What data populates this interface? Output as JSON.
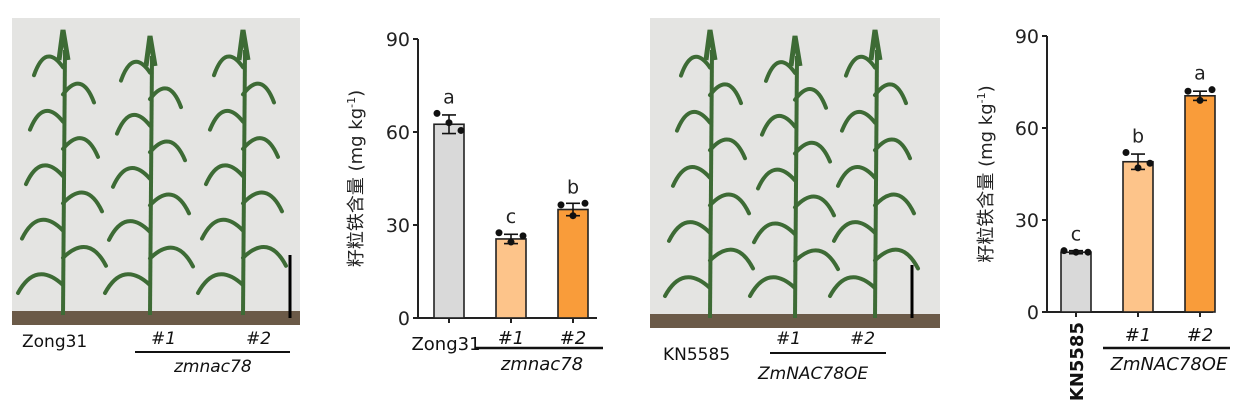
{
  "panels": [
    {
      "photo": {
        "labels": {
          "control": "Zong31",
          "line1": "#1",
          "line2": "#2",
          "group": "zmnac78"
        }
      }
    },
    {
      "photo": {
        "labels": {
          "control": "KN5585",
          "line1": "#1",
          "line2": "#2",
          "group": "ZmNAC78OE"
        }
      }
    }
  ],
  "colors": {
    "control": "#d9d9d9",
    "line1": "#fdc48a",
    "line2": "#f99c3a",
    "axis": "#222222",
    "plant": "#3d6b35",
    "wall": "#e4e4e2"
  },
  "chart_data": [
    {
      "type": "bar",
      "title": "",
      "ylabel": "籽粒铁含量 (mg kg⁻¹)",
      "ylabel_main": "籽粒铁含量 (mg kg",
      "ylabel_sup": "-1",
      "ylabel_end": ")",
      "ylim": [
        0,
        90
      ],
      "yticks": [
        "0",
        "30",
        "60",
        "90"
      ],
      "ytick_values": [
        0,
        30,
        60,
        90
      ],
      "categories": [
        "Zong31",
        "#1",
        "#2"
      ],
      "group_label": "zmnac78",
      "values": [
        62.5,
        25.5,
        35
      ],
      "errors": [
        3,
        1.5,
        2
      ],
      "points": [
        [
          66,
          63,
          60.5
        ],
        [
          27.5,
          24.5,
          26.5
        ],
        [
          36.5,
          33,
          37
        ]
      ],
      "significance": [
        "a",
        "c",
        "b"
      ]
    },
    {
      "type": "bar",
      "title": "",
      "ylabel": "籽粒铁含量 (mg kg⁻¹)",
      "ylabel_main": "籽粒铁含量 (mg kg",
      "ylabel_sup": "-1",
      "ylabel_end": ")",
      "ylim": [
        0,
        90
      ],
      "yticks": [
        "0",
        "30",
        "60",
        "90"
      ],
      "ytick_values": [
        0,
        30,
        60,
        90
      ],
      "categories": [
        "KN5585",
        "#1",
        "#2"
      ],
      "group_label": "ZmNAC78OE",
      "values": [
        19.5,
        49,
        70.5
      ],
      "errors": [
        0.5,
        2.5,
        1.5
      ],
      "points": [
        [
          20,
          19.5,
          19.5
        ],
        [
          52,
          47,
          48.5
        ],
        [
          72,
          69,
          72.5
        ]
      ],
      "significance": [
        "c",
        "b",
        "a"
      ]
    }
  ]
}
